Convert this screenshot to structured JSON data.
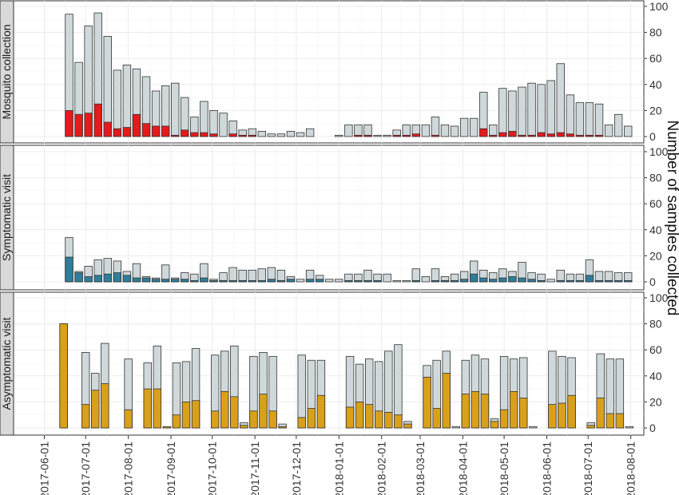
{
  "chart_data": {
    "type": "bar",
    "stacked": true,
    "ylabel": "Number of samples collected",
    "x_ticks": [
      "2017-06-01",
      "2017-07-01",
      "2017-08-01",
      "2017-09-01",
      "2017-10-01",
      "2017-11-01",
      "2017-12-01",
      "2018-01-01",
      "2018-02-01",
      "2018-03-01",
      "2018-04-01",
      "2018-05-01",
      "2018-06-01",
      "2018-07-01",
      "2018-08-01"
    ],
    "y_ticks": [
      "0",
      "20",
      "40",
      "60",
      "80",
      "100"
    ],
    "ylim": [
      0,
      100
    ],
    "grid": true,
    "colors": {
      "total": "#cfd8db",
      "mosquito": "#e41a1c",
      "symptomatic": "#2e7d9a",
      "asymptomatic": "#d9a01a",
      "panel_bg": "#ffffff",
      "grid": "#ececec",
      "strip": "#d9d9d9"
    },
    "panels": [
      {
        "label": "Mosquito collection",
        "highlight": "mosquito",
        "bars": [
          {
            "date": "2017-06-19",
            "total": 94,
            "part": 20
          },
          {
            "date": "2017-06-26",
            "total": 57,
            "part": 17
          },
          {
            "date": "2017-07-03",
            "total": 85,
            "part": 18
          },
          {
            "date": "2017-07-10",
            "total": 95,
            "part": 25
          },
          {
            "date": "2017-07-17",
            "total": 77,
            "part": 11
          },
          {
            "date": "2017-07-24",
            "total": 51,
            "part": 6
          },
          {
            "date": "2017-07-31",
            "total": 55,
            "part": 7
          },
          {
            "date": "2017-08-07",
            "total": 52,
            "part": 17
          },
          {
            "date": "2017-08-14",
            "total": 46,
            "part": 10
          },
          {
            "date": "2017-08-21",
            "total": 35,
            "part": 8
          },
          {
            "date": "2017-08-28",
            "total": 39,
            "part": 8
          },
          {
            "date": "2017-09-04",
            "total": 41,
            "part": 1
          },
          {
            "date": "2017-09-11",
            "total": 30,
            "part": 5
          },
          {
            "date": "2017-09-18",
            "total": 15,
            "part": 3
          },
          {
            "date": "2017-09-25",
            "total": 27,
            "part": 3
          },
          {
            "date": "2017-10-02",
            "total": 20,
            "part": 2
          },
          {
            "date": "2017-10-09",
            "total": 18,
            "part": 0
          },
          {
            "date": "2017-10-16",
            "total": 12,
            "part": 2
          },
          {
            "date": "2017-10-23",
            "total": 5,
            "part": 1
          },
          {
            "date": "2017-10-30",
            "total": 6,
            "part": 1
          },
          {
            "date": "2017-11-06",
            "total": 4,
            "part": 0
          },
          {
            "date": "2017-11-13",
            "total": 2,
            "part": 0
          },
          {
            "date": "2017-11-20",
            "total": 2,
            "part": 0
          },
          {
            "date": "2017-11-27",
            "total": 4,
            "part": 0
          },
          {
            "date": "2017-12-04",
            "total": 3,
            "part": 0
          },
          {
            "date": "2017-12-11",
            "total": 6,
            "part": 0
          },
          {
            "date": "2018-01-01",
            "total": 1,
            "part": 0
          },
          {
            "date": "2018-01-08",
            "total": 9,
            "part": 0
          },
          {
            "date": "2018-01-15",
            "total": 9,
            "part": 1
          },
          {
            "date": "2018-01-22",
            "total": 9,
            "part": 1
          },
          {
            "date": "2018-01-29",
            "total": 1,
            "part": 0
          },
          {
            "date": "2018-02-05",
            "total": 1,
            "part": 0
          },
          {
            "date": "2018-02-12",
            "total": 5,
            "part": 1
          },
          {
            "date": "2018-02-19",
            "total": 9,
            "part": 1
          },
          {
            "date": "2018-02-26",
            "total": 9,
            "part": 2
          },
          {
            "date": "2018-03-05",
            "total": 9,
            "part": 0
          },
          {
            "date": "2018-03-12",
            "total": 15,
            "part": 1
          },
          {
            "date": "2018-03-19",
            "total": 9,
            "part": 0
          },
          {
            "date": "2018-03-26",
            "total": 8,
            "part": 0
          },
          {
            "date": "2018-04-02",
            "total": 14,
            "part": 0
          },
          {
            "date": "2018-04-09",
            "total": 14,
            "part": 0
          },
          {
            "date": "2018-04-16",
            "total": 34,
            "part": 6
          },
          {
            "date": "2018-04-23",
            "total": 9,
            "part": 1
          },
          {
            "date": "2018-04-30",
            "total": 37,
            "part": 3
          },
          {
            "date": "2018-05-07",
            "total": 35,
            "part": 4
          },
          {
            "date": "2018-05-14",
            "total": 38,
            "part": 1
          },
          {
            "date": "2018-05-21",
            "total": 41,
            "part": 1
          },
          {
            "date": "2018-05-28",
            "total": 40,
            "part": 3
          },
          {
            "date": "2018-06-04",
            "total": 43,
            "part": 2
          },
          {
            "date": "2018-06-11",
            "total": 56,
            "part": 3
          },
          {
            "date": "2018-06-18",
            "total": 32,
            "part": 2
          },
          {
            "date": "2018-06-25",
            "total": 26,
            "part": 1
          },
          {
            "date": "2018-07-02",
            "total": 26,
            "part": 1
          },
          {
            "date": "2018-07-09",
            "total": 25,
            "part": 1
          },
          {
            "date": "2018-07-16",
            "total": 9,
            "part": 0
          },
          {
            "date": "2018-07-23",
            "total": 17,
            "part": 0
          },
          {
            "date": "2018-07-30",
            "total": 8,
            "part": 0
          }
        ]
      },
      {
        "label": "Symptomatic visit",
        "highlight": "symptomatic",
        "bars": [
          {
            "date": "2017-06-19",
            "total": 34,
            "part": 19
          },
          {
            "date": "2017-06-26",
            "total": 8,
            "part": 7
          },
          {
            "date": "2017-07-03",
            "total": 12,
            "part": 4
          },
          {
            "date": "2017-07-10",
            "total": 17,
            "part": 5
          },
          {
            "date": "2017-07-17",
            "total": 18,
            "part": 6
          },
          {
            "date": "2017-07-24",
            "total": 16,
            "part": 7
          },
          {
            "date": "2017-07-31",
            "total": 8,
            "part": 5
          },
          {
            "date": "2017-08-07",
            "total": 14,
            "part": 3
          },
          {
            "date": "2017-08-14",
            "total": 4,
            "part": 3
          },
          {
            "date": "2017-08-21",
            "total": 3,
            "part": 2
          },
          {
            "date": "2017-08-28",
            "total": 13,
            "part": 2
          },
          {
            "date": "2017-09-04",
            "total": 3,
            "part": 2
          },
          {
            "date": "2017-09-11",
            "total": 7,
            "part": 2
          },
          {
            "date": "2017-09-18",
            "total": 6,
            "part": 1
          },
          {
            "date": "2017-09-25",
            "total": 14,
            "part": 3
          },
          {
            "date": "2017-10-02",
            "total": 2,
            "part": 1
          },
          {
            "date": "2017-10-09",
            "total": 7,
            "part": 1
          },
          {
            "date": "2017-10-16",
            "total": 11,
            "part": 1
          },
          {
            "date": "2017-10-23",
            "total": 9,
            "part": 1
          },
          {
            "date": "2017-10-30",
            "total": 9,
            "part": 1
          },
          {
            "date": "2017-11-06",
            "total": 10,
            "part": 1
          },
          {
            "date": "2017-11-13",
            "total": 11,
            "part": 2
          },
          {
            "date": "2017-11-20",
            "total": 9,
            "part": 1
          },
          {
            "date": "2017-11-27",
            "total": 4,
            "part": 2
          },
          {
            "date": "2017-12-04",
            "total": 2,
            "part": 0
          },
          {
            "date": "2017-12-11",
            "total": 9,
            "part": 2
          },
          {
            "date": "2017-12-18",
            "total": 5,
            "part": 2
          },
          {
            "date": "2017-12-25",
            "total": 2,
            "part": 0
          },
          {
            "date": "2018-01-01",
            "total": 2,
            "part": 0
          },
          {
            "date": "2018-01-08",
            "total": 6,
            "part": 1
          },
          {
            "date": "2018-01-15",
            "total": 6,
            "part": 1
          },
          {
            "date": "2018-01-22",
            "total": 9,
            "part": 1
          },
          {
            "date": "2018-01-29",
            "total": 6,
            "part": 1
          },
          {
            "date": "2018-02-05",
            "total": 6,
            "part": 0
          },
          {
            "date": "2018-02-12",
            "total": 1,
            "part": 0
          },
          {
            "date": "2018-02-19",
            "total": 1,
            "part": 0
          },
          {
            "date": "2018-02-26",
            "total": 10,
            "part": 1
          },
          {
            "date": "2018-03-05",
            "total": 4,
            "part": 0
          },
          {
            "date": "2018-03-12",
            "total": 10,
            "part": 1
          },
          {
            "date": "2018-03-19",
            "total": 4,
            "part": 1
          },
          {
            "date": "2018-03-26",
            "total": 6,
            "part": 1
          },
          {
            "date": "2018-04-02",
            "total": 8,
            "part": 2
          },
          {
            "date": "2018-04-09",
            "total": 16,
            "part": 6
          },
          {
            "date": "2018-04-16",
            "total": 9,
            "part": 3
          },
          {
            "date": "2018-04-23",
            "total": 7,
            "part": 2
          },
          {
            "date": "2018-04-30",
            "total": 10,
            "part": 3
          },
          {
            "date": "2018-05-07",
            "total": 8,
            "part": 4
          },
          {
            "date": "2018-05-14",
            "total": 15,
            "part": 3
          },
          {
            "date": "2018-05-21",
            "total": 7,
            "part": 2
          },
          {
            "date": "2018-05-28",
            "total": 6,
            "part": 1
          },
          {
            "date": "2018-06-04",
            "total": 2,
            "part": 0
          },
          {
            "date": "2018-06-11",
            "total": 9,
            "part": 1
          },
          {
            "date": "2018-06-18",
            "total": 6,
            "part": 1
          },
          {
            "date": "2018-06-25",
            "total": 6,
            "part": 1
          },
          {
            "date": "2018-07-02",
            "total": 17,
            "part": 5
          },
          {
            "date": "2018-07-09",
            "total": 8,
            "part": 1
          },
          {
            "date": "2018-07-16",
            "total": 8,
            "part": 1
          },
          {
            "date": "2018-07-23",
            "total": 7,
            "part": 1
          },
          {
            "date": "2018-07-30",
            "total": 7,
            "part": 1
          }
        ]
      },
      {
        "label": "Asymptomatic visit",
        "highlight": "asymptomatic",
        "bars": [
          {
            "date": "2017-06-15",
            "total": 80,
            "part": 80
          },
          {
            "date": "2017-07-01",
            "total": 58,
            "part": 18
          },
          {
            "date": "2017-07-08",
            "total": 42,
            "part": 29
          },
          {
            "date": "2017-07-15",
            "total": 65,
            "part": 34
          },
          {
            "date": "2017-08-01",
            "total": 53,
            "part": 14
          },
          {
            "date": "2017-08-15",
            "total": 50,
            "part": 30
          },
          {
            "date": "2017-08-22",
            "total": 63,
            "part": 30
          },
          {
            "date": "2017-08-29",
            "total": 1,
            "part": 1
          },
          {
            "date": "2017-09-05",
            "total": 50,
            "part": 10
          },
          {
            "date": "2017-09-12",
            "total": 51,
            "part": 20
          },
          {
            "date": "2017-09-19",
            "total": 61,
            "part": 21
          },
          {
            "date": "2017-10-03",
            "total": 56,
            "part": 13
          },
          {
            "date": "2017-10-10",
            "total": 59,
            "part": 28
          },
          {
            "date": "2017-10-17",
            "total": 63,
            "part": 24
          },
          {
            "date": "2017-10-24",
            "total": 4,
            "part": 2
          },
          {
            "date": "2017-10-31",
            "total": 55,
            "part": 13
          },
          {
            "date": "2017-11-07",
            "total": 58,
            "part": 26
          },
          {
            "date": "2017-11-14",
            "total": 55,
            "part": 13
          },
          {
            "date": "2017-11-21",
            "total": 3,
            "part": 1
          },
          {
            "date": "2017-12-05",
            "total": 56,
            "part": 8
          },
          {
            "date": "2017-12-12",
            "total": 52,
            "part": 15
          },
          {
            "date": "2017-12-19",
            "total": 52,
            "part": 25
          },
          {
            "date": "2018-01-09",
            "total": 55,
            "part": 16
          },
          {
            "date": "2018-01-16",
            "total": 49,
            "part": 20
          },
          {
            "date": "2018-01-23",
            "total": 53,
            "part": 18
          },
          {
            "date": "2018-01-30",
            "total": 51,
            "part": 13
          },
          {
            "date": "2018-02-06",
            "total": 59,
            "part": 12
          },
          {
            "date": "2018-02-13",
            "total": 64,
            "part": 10
          },
          {
            "date": "2018-02-20",
            "total": 5,
            "part": 3
          },
          {
            "date": "2018-03-06",
            "total": 48,
            "part": 39
          },
          {
            "date": "2018-03-13",
            "total": 52,
            "part": 15
          },
          {
            "date": "2018-03-20",
            "total": 59,
            "part": 42
          },
          {
            "date": "2018-03-27",
            "total": 1,
            "part": 0
          },
          {
            "date": "2018-04-03",
            "total": 52,
            "part": 26
          },
          {
            "date": "2018-04-10",
            "total": 56,
            "part": 28
          },
          {
            "date": "2018-04-17",
            "total": 53,
            "part": 26
          },
          {
            "date": "2018-04-24",
            "total": 7,
            "part": 5
          },
          {
            "date": "2018-05-01",
            "total": 55,
            "part": 14
          },
          {
            "date": "2018-05-08",
            "total": 53,
            "part": 28
          },
          {
            "date": "2018-05-15",
            "total": 54,
            "part": 23
          },
          {
            "date": "2018-05-22",
            "total": 1,
            "part": 0
          },
          {
            "date": "2018-06-05",
            "total": 59,
            "part": 18
          },
          {
            "date": "2018-06-12",
            "total": 55,
            "part": 19
          },
          {
            "date": "2018-06-19",
            "total": 54,
            "part": 25
          },
          {
            "date": "2018-07-03",
            "total": 4,
            "part": 2
          },
          {
            "date": "2018-07-10",
            "total": 57,
            "part": 23
          },
          {
            "date": "2018-07-17",
            "total": 53,
            "part": 11
          },
          {
            "date": "2018-07-24",
            "total": 53,
            "part": 11
          },
          {
            "date": "2018-07-31",
            "total": 1,
            "part": 0
          }
        ]
      }
    ]
  }
}
